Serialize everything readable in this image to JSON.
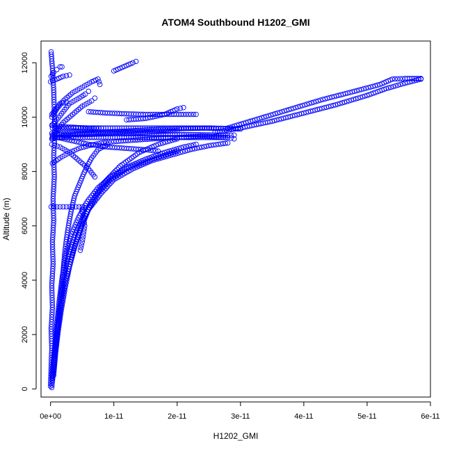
{
  "chart_data": {
    "type": "scatter",
    "title": "ATOM4 Southbound H1202_GMI",
    "xlabel": "H1202_GMI",
    "ylabel": "Altitude (m)",
    "xlim": [
      -1.5e-12,
      6e-11
    ],
    "ylim": [
      -300,
      12800
    ],
    "x_ticks": [
      0,
      1e-11,
      2e-11,
      3e-11,
      4e-11,
      5e-11,
      6e-11
    ],
    "x_tick_labels": [
      "0e+00",
      "1e-11",
      "2e-11",
      "3e-11",
      "4e-11",
      "5e-11",
      "6e-11"
    ],
    "y_ticks": [
      0,
      2000,
      4000,
      6000,
      8000,
      10000,
      12000
    ],
    "y_tick_labels": [
      "0",
      "2000",
      "4000",
      "6000",
      "8000",
      "10000",
      "12000"
    ],
    "marker": "open-circle",
    "marker_color": "#0000ff",
    "legend": "none",
    "grid": false,
    "series": [
      {
        "points": [
          [
            0,
            100
          ],
          [
            1e-13,
            800
          ],
          [
            2e-13,
            1500
          ],
          [
            1e-13,
            2200
          ],
          [
            3e-13,
            3000
          ],
          [
            2e-13,
            3800
          ],
          [
            4e-13,
            4600
          ],
          [
            3e-13,
            5400
          ],
          [
            5e-13,
            6200
          ],
          [
            4e-13,
            7000
          ],
          [
            6e-13,
            7800
          ],
          [
            5e-13,
            8600
          ],
          [
            7e-13,
            9400
          ],
          [
            6e-13,
            10200
          ],
          [
            5e-13,
            11000
          ],
          [
            3e-13,
            11800
          ],
          [
            1e-13,
            12400
          ]
        ]
      },
      {
        "points": [
          [
            2e-13,
            50
          ],
          [
            5e-13,
            900
          ],
          [
            8e-13,
            1700
          ],
          [
            1.2e-12,
            2500
          ],
          [
            1.6e-12,
            3300
          ],
          [
            1.9e-12,
            4100
          ],
          [
            2.2e-12,
            4900
          ],
          [
            2.5e-12,
            5500
          ],
          [
            2.9e-12,
            6100
          ],
          [
            3.3e-12,
            6600
          ],
          [
            3.8e-12,
            7100
          ],
          [
            4.5e-12,
            7500
          ],
          [
            5.2e-12,
            7900
          ],
          [
            5.8e-12,
            8200
          ],
          [
            6.5e-12,
            8500
          ],
          [
            7.5e-12,
            8800
          ],
          [
            9e-12,
            9000
          ]
        ]
      },
      {
        "points": [
          [
            3e-13,
            300
          ],
          [
            7e-13,
            1200
          ],
          [
            1.1e-12,
            2100
          ],
          [
            1.5e-12,
            3000
          ],
          [
            2e-12,
            3900
          ],
          [
            2.6e-12,
            4700
          ],
          [
            3.4e-12,
            5400
          ],
          [
            4.5e-12,
            6000
          ],
          [
            6e-12,
            6600
          ],
          [
            8e-12,
            7200
          ],
          [
            1e-11,
            7700
          ],
          [
            1.3e-11,
            8100
          ],
          [
            1.6e-11,
            8400
          ],
          [
            1.9e-11,
            8600
          ],
          [
            2.2e-11,
            8800
          ],
          [
            2.5e-11,
            8950
          ],
          [
            2.8e-11,
            9050
          ]
        ]
      },
      {
        "points": [
          [
            2e-13,
            400
          ],
          [
            6e-13,
            1400
          ],
          [
            1e-12,
            2400
          ],
          [
            1.4e-12,
            3300
          ],
          [
            1.9e-12,
            4200
          ],
          [
            2.5e-12,
            5000
          ],
          [
            3.3e-12,
            5700
          ],
          [
            4.4e-12,
            6300
          ],
          [
            5.8e-12,
            6900
          ],
          [
            7.5e-12,
            7400
          ],
          [
            9.5e-12,
            7800
          ],
          [
            1.2e-11,
            8150
          ],
          [
            1.5e-11,
            8450
          ],
          [
            1.8e-11,
            8700
          ],
          [
            2.1e-11,
            8900
          ],
          [
            2.3e-11,
            9000
          ]
        ]
      },
      {
        "points": [
          [
            5e-13,
            500
          ],
          [
            8e-13,
            1300
          ],
          [
            1.2e-12,
            2100
          ],
          [
            1.7e-12,
            2900
          ],
          [
            2.3e-12,
            3700
          ],
          [
            3e-12,
            4500
          ],
          [
            3.8e-12,
            5200
          ],
          [
            4.8e-12,
            5900
          ],
          [
            6e-12,
            6600
          ],
          [
            7.5e-12,
            7200
          ],
          [
            9.5e-12,
            7700
          ],
          [
            1.2e-11,
            8100
          ],
          [
            1.6e-11,
            8450
          ],
          [
            2e-11,
            8750
          ]
        ]
      },
      {
        "points": [
          [
            3e-13,
            300
          ],
          [
            8e-13,
            1500
          ],
          [
            1.5e-12,
            2800
          ],
          [
            2.4e-12,
            4000
          ],
          [
            3.5e-12,
            5000
          ],
          [
            4.8e-12,
            6000
          ],
          [
            6.5e-12,
            6900
          ],
          [
            8.5e-12,
            7600
          ],
          [
            1.1e-11,
            8200
          ],
          [
            1.4e-11,
            8700
          ],
          [
            1.7e-11,
            9000
          ],
          [
            2e-11,
            9200
          ]
        ]
      },
      {
        "points": [
          [
            1e-13,
            6700
          ],
          [
            1e-12,
            6700
          ],
          [
            2e-12,
            6700
          ],
          [
            3e-12,
            6700
          ],
          [
            4e-12,
            6700
          ],
          [
            5e-12,
            6700
          ],
          [
            5.5e-12,
            6650
          ]
        ]
      },
      {
        "points": [
          [
            5e-12,
            6600
          ],
          [
            5.2e-12,
            6300
          ],
          [
            5.4e-12,
            6000
          ],
          [
            5.2e-12,
            5700
          ],
          [
            5e-12,
            5400
          ],
          [
            4.7e-12,
            5100
          ]
        ]
      },
      {
        "points": [
          [
            3e-13,
            8300
          ],
          [
            1.5e-12,
            8500
          ],
          [
            3e-12,
            8700
          ],
          [
            4.5e-12,
            8850
          ],
          [
            6e-12,
            8950
          ],
          [
            8e-12,
            9050
          ],
          [
            1e-11,
            9100
          ],
          [
            1.3e-11,
            9150
          ],
          [
            1.6e-11,
            9200
          ],
          [
            2e-11,
            9250
          ],
          [
            2.4e-11,
            9300
          ],
          [
            2.8e-11,
            9250
          ],
          [
            2.9e-11,
            9200
          ]
        ]
      },
      {
        "points": [
          [
            3e-13,
            9250
          ],
          [
            4e-12,
            9250
          ],
          [
            8e-12,
            9250
          ],
          [
            1.2e-11,
            9250
          ],
          [
            1.6e-11,
            9250
          ],
          [
            2e-11,
            9250
          ],
          [
            2.4e-11,
            9250
          ],
          [
            2.8e-11,
            9250
          ]
        ]
      },
      {
        "points": [
          [
            3e-13,
            9600
          ],
          [
            4e-12,
            9600
          ],
          [
            8e-12,
            9600
          ],
          [
            1.2e-11,
            9600
          ],
          [
            1.6e-11,
            9600
          ],
          [
            2e-11,
            9600
          ],
          [
            2.4e-11,
            9600
          ],
          [
            2.8e-11,
            9580
          ],
          [
            3e-11,
            9560
          ]
        ]
      },
      {
        "points": [
          [
            6e-12,
            10200
          ],
          [
            9e-12,
            10150
          ],
          [
            1.2e-11,
            10120
          ],
          [
            1.5e-11,
            10100
          ],
          [
            1.8e-11,
            10100
          ],
          [
            2.1e-11,
            10100
          ],
          [
            2.3e-11,
            10100
          ]
        ]
      },
      {
        "points": [
          [
            3e-13,
            9350
          ],
          [
            5e-12,
            9350
          ],
          [
            1e-11,
            9400
          ],
          [
            1.5e-11,
            9450
          ],
          [
            2e-11,
            9500
          ]
        ]
      },
      {
        "points": [
          [
            1.2e-11,
            9900
          ],
          [
            1.5e-11,
            9950
          ],
          [
            1.8e-11,
            10100
          ],
          [
            2e-11,
            10300
          ],
          [
            2.1e-11,
            10350
          ]
        ]
      },
      {
        "points": [
          [
            3e-13,
            9300
          ],
          [
            3e-12,
            9150
          ],
          [
            6e-12,
            9000
          ],
          [
            9e-12,
            8900
          ],
          [
            1.2e-11,
            8850
          ],
          [
            1.5e-11,
            8800
          ],
          [
            1.7e-11,
            8750
          ]
        ]
      },
      {
        "points": [
          [
            2e-13,
            9700
          ],
          [
            1e-12,
            9900
          ],
          [
            2e-12,
            10200
          ],
          [
            3e-12,
            10500
          ],
          [
            4.5e-12,
            10700
          ],
          [
            5.5e-12,
            10850
          ],
          [
            6e-12,
            10950
          ]
        ]
      },
      {
        "points": [
          [
            2e-13,
            10000
          ],
          [
            1e-12,
            10300
          ],
          [
            2e-12,
            10600
          ],
          [
            3.5e-12,
            10900
          ],
          [
            5e-12,
            11100
          ],
          [
            6.5e-12,
            11300
          ],
          [
            7.5e-12,
            11400
          ],
          [
            7.8e-12,
            11200
          ]
        ]
      },
      {
        "points": [
          [
            2e-13,
            9200
          ],
          [
            1e-12,
            9500
          ],
          [
            2e-12,
            9800
          ],
          [
            3.5e-12,
            10100
          ],
          [
            5e-12,
            10400
          ],
          [
            6.5e-12,
            10600
          ],
          [
            7e-12,
            10700
          ]
        ]
      },
      {
        "points": [
          [
            1e-13,
            11500
          ],
          [
            5e-13,
            11650
          ],
          [
            1e-12,
            11750
          ],
          [
            1.5e-12,
            11850
          ],
          [
            1.8e-12,
            11850
          ]
        ]
      },
      {
        "points": [
          [
            1e-11,
            11700
          ],
          [
            1.1e-11,
            11800
          ],
          [
            1.2e-11,
            11900
          ],
          [
            1.3e-11,
            12000
          ],
          [
            1.35e-11,
            12050
          ]
        ]
      },
      {
        "points": [
          [
            3e-13,
            9700
          ],
          [
            2e-12,
            9650
          ],
          [
            4e-12,
            9620
          ],
          [
            6e-12,
            9600
          ],
          [
            8e-12,
            9600
          ]
        ]
      },
      {
        "points": [
          [
            2e-13,
            9000
          ],
          [
            1.5e-12,
            8900
          ],
          [
            3e-12,
            8700
          ],
          [
            4.5e-12,
            8400
          ],
          [
            6e-12,
            8100
          ],
          [
            7e-12,
            7800
          ]
        ]
      },
      {
        "points": [
          [
            2e-13,
            10100
          ],
          [
            1.5e-12,
            10500
          ],
          [
            2.5e-12,
            10550
          ]
        ]
      },
      {
        "points": [
          [
            0,
            11300
          ],
          [
            1e-12,
            11400
          ],
          [
            2e-12,
            11500
          ],
          [
            3e-12,
            11550
          ]
        ]
      },
      {
        "points": [
          [
            2e-13,
            9400
          ],
          [
            4e-12,
            9410
          ],
          [
            8e-12,
            9420
          ],
          [
            1.2e-11,
            9400
          ],
          [
            1.6e-11,
            9380
          ],
          [
            2e-11,
            9360
          ],
          [
            2.4e-11,
            9350
          ],
          [
            2.8e-11,
            9330
          ],
          [
            2.9e-11,
            9340
          ]
        ]
      },
      {
        "points": [
          [
            3e-13,
            9200
          ],
          [
            2e-12,
            9300
          ],
          [
            5e-12,
            9400
          ],
          [
            9e-12,
            9450
          ],
          [
            1.3e-11,
            9500
          ],
          [
            1.7e-11,
            9550
          ],
          [
            2.1e-11,
            9580
          ],
          [
            2.5e-11,
            9600
          ],
          [
            2.8e-11,
            9580
          ]
        ]
      },
      {
        "points": [
          [
            2.6e-11,
            9450
          ],
          [
            3e-11,
            9600
          ],
          [
            3.5e-11,
            9850
          ],
          [
            4e-11,
            10150
          ],
          [
            4.5e-11,
            10450
          ],
          [
            5e-11,
            10800
          ],
          [
            5.3e-11,
            11050
          ],
          [
            5.6e-11,
            11250
          ],
          [
            5.85e-11,
            11400
          ]
        ]
      },
      {
        "points": [
          [
            2.8e-11,
            9600
          ],
          [
            3.3e-11,
            9950
          ],
          [
            3.8e-11,
            10300
          ],
          [
            4.3e-11,
            10650
          ],
          [
            4.8e-11,
            10950
          ],
          [
            5.2e-11,
            11200
          ],
          [
            5.4e-11,
            11400
          ],
          [
            5.6e-11,
            11420
          ],
          [
            5.85e-11,
            11420
          ]
        ]
      }
    ]
  }
}
